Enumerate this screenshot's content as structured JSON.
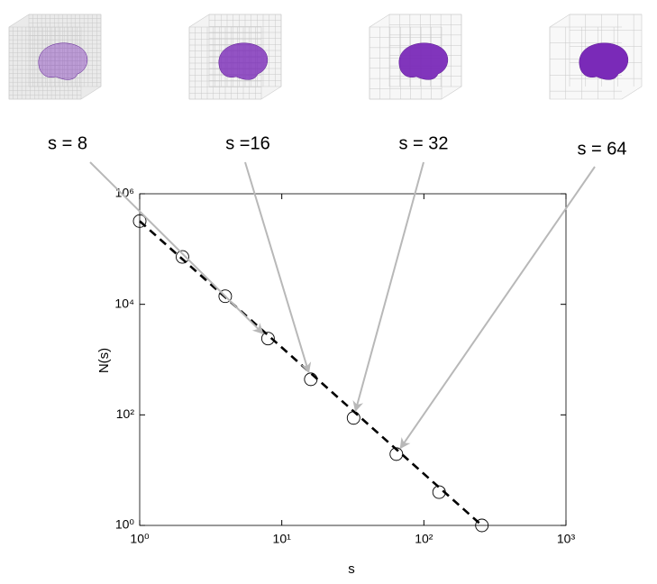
{
  "chart_data": {
    "type": "scatter",
    "xlabel": "s",
    "ylabel": "N(s)",
    "xscale": "log",
    "yscale": "log",
    "xlim": [
      1,
      1000
    ],
    "ylim": [
      1,
      1000000
    ],
    "xticks": [
      {
        "value": 1,
        "label": "10⁰"
      },
      {
        "value": 10,
        "label": "10¹"
      },
      {
        "value": 100,
        "label": "10²"
      },
      {
        "value": 1000,
        "label": "10³"
      }
    ],
    "yticks": [
      {
        "value": 1,
        "label": "10⁰"
      },
      {
        "value": 100,
        "label": "10²"
      },
      {
        "value": 10000,
        "label": "10⁴"
      },
      {
        "value": 1000000,
        "label": "10⁶"
      }
    ],
    "x": [
      1,
      2,
      4,
      8,
      16,
      32,
      64,
      128,
      256
    ],
    "series": [
      {
        "type": "scatter",
        "color": "#000000",
        "values": [
          320000,
          72000,
          14000,
          2400,
          440,
          88,
          19.5,
          4,
          1
        ]
      },
      {
        "type": "line",
        "color": "#000000",
        "dashed": true,
        "x": [
          1,
          256
        ],
        "values": [
          320000,
          1
        ]
      }
    ],
    "annotations": [
      {
        "text": "s = 8",
        "x": 8,
        "y": 2400
      },
      {
        "text": "s  =16",
        "x": 16,
        "y": 440
      },
      {
        "text": "s  = 32",
        "x": 32,
        "y": 88
      },
      {
        "text": "s  = 64",
        "x": 64,
        "y": 19.5
      }
    ]
  }
}
